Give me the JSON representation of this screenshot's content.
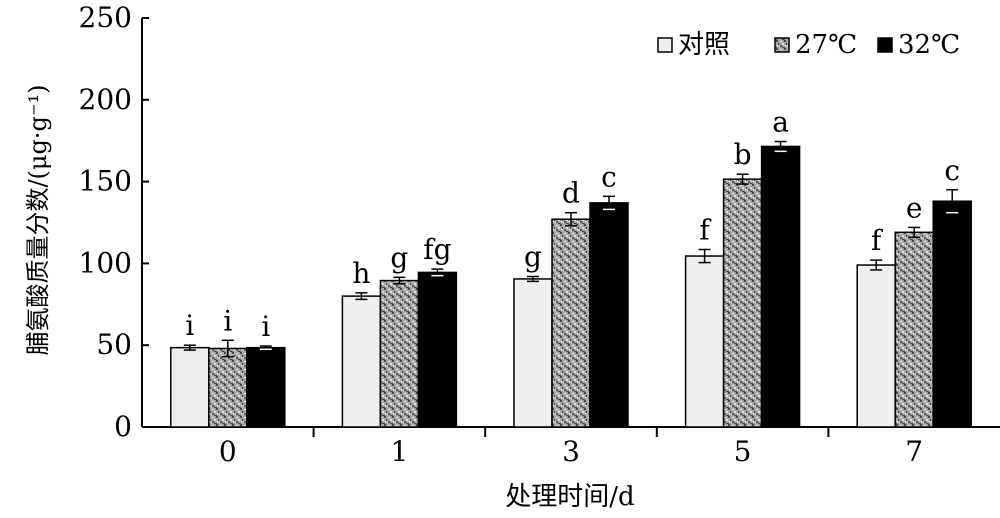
{
  "chart_data": {
    "type": "bar",
    "xlabel": "处理时间/d",
    "ylabel": "脯氨酸质量分数/(μg·g⁻¹)",
    "ylim": [
      0,
      250
    ],
    "yticks": [
      0,
      50,
      100,
      150,
      200,
      250
    ],
    "categories": [
      "0",
      "1",
      "3",
      "5",
      "7"
    ],
    "legend_position": "top-right",
    "series": [
      {
        "name": "对照",
        "pattern": "light",
        "color": "#efefef",
        "values": [
          48.5,
          80,
          90.5,
          104.5,
          99
        ],
        "errors": [
          1.5,
          2,
          1.5,
          4,
          3
        ],
        "labels": [
          "i",
          "h",
          "g",
          "f",
          "f"
        ]
      },
      {
        "name": "27℃",
        "pattern": "speckled-gray",
        "color": "#9a9a9a",
        "values": [
          48,
          89.5,
          127,
          151.5,
          119
        ],
        "errors": [
          5,
          2,
          4,
          3,
          3
        ],
        "labels": [
          "i",
          "g",
          "d",
          "b",
          "e"
        ]
      },
      {
        "name": "32℃",
        "pattern": "solid-black",
        "color": "#000000",
        "values": [
          48.5,
          94.5,
          137,
          171.5,
          138
        ],
        "errors": [
          1,
          2,
          4,
          3,
          7
        ],
        "labels": [
          "i",
          "fg",
          "c",
          "a",
          "c"
        ]
      }
    ]
  }
}
